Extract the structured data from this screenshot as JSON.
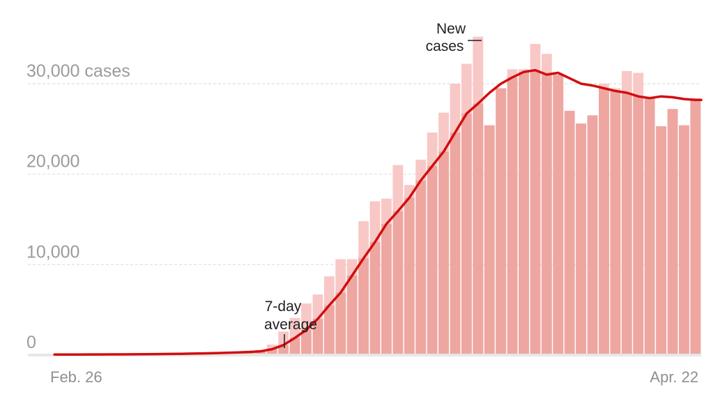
{
  "chart_data": {
    "type": "bar",
    "x_start_label": "Feb. 26",
    "x_end_label": "Apr. 22",
    "y_tick_labels": [
      {
        "value": 0,
        "label": "0"
      },
      {
        "value": 10000,
        "label": "10,000"
      },
      {
        "value": 20000,
        "label": "20,000"
      },
      {
        "value": 30000,
        "label": "30,000 cases"
      }
    ],
    "ylim": [
      0,
      35000
    ],
    "grid": true,
    "annotations": {
      "new_cases": [
        "New",
        "cases"
      ],
      "seven_day": [
        "7-day",
        "average"
      ]
    },
    "series": [
      {
        "kind": "bar",
        "values": [
          10,
          12,
          15,
          18,
          20,
          25,
          30,
          35,
          40,
          50,
          60,
          80,
          100,
          150,
          200,
          280,
          380,
          480,
          580,
          1150,
          2600,
          4100,
          5700,
          6700,
          8700,
          10600,
          10600,
          14800,
          17000,
          17300,
          21000,
          18800,
          21600,
          24600,
          26800,
          30000,
          32200,
          35200,
          25400,
          29500,
          31600,
          31600,
          34400,
          33300,
          31000,
          27000,
          25600,
          26500,
          30000,
          29500,
          31400,
          31200,
          28400,
          25300,
          27200,
          25400,
          28400
        ]
      },
      {
        "kind": "line",
        "values": [
          60,
          62,
          64,
          66,
          70,
          74,
          80,
          88,
          96,
          108,
          122,
          140,
          160,
          185,
          215,
          250,
          290,
          340,
          420,
          650,
          1100,
          1900,
          2800,
          4000,
          5500,
          6900,
          8800,
          10700,
          12500,
          14500,
          15900,
          17400,
          19300,
          20900,
          22500,
          24600,
          26700,
          27800,
          29000,
          30000,
          30700,
          31300,
          31500,
          31000,
          31200,
          30600,
          30000,
          29800,
          29500,
          29200,
          29000,
          28600,
          28400,
          28600,
          28500,
          28300,
          28200
        ]
      }
    ],
    "colors": {
      "bar_light": "#f8c8c6",
      "bar_dark": "#eea6a1",
      "line": "#d10e0f",
      "grid": "#dddddd",
      "baseline": "#e7e7e7"
    }
  }
}
